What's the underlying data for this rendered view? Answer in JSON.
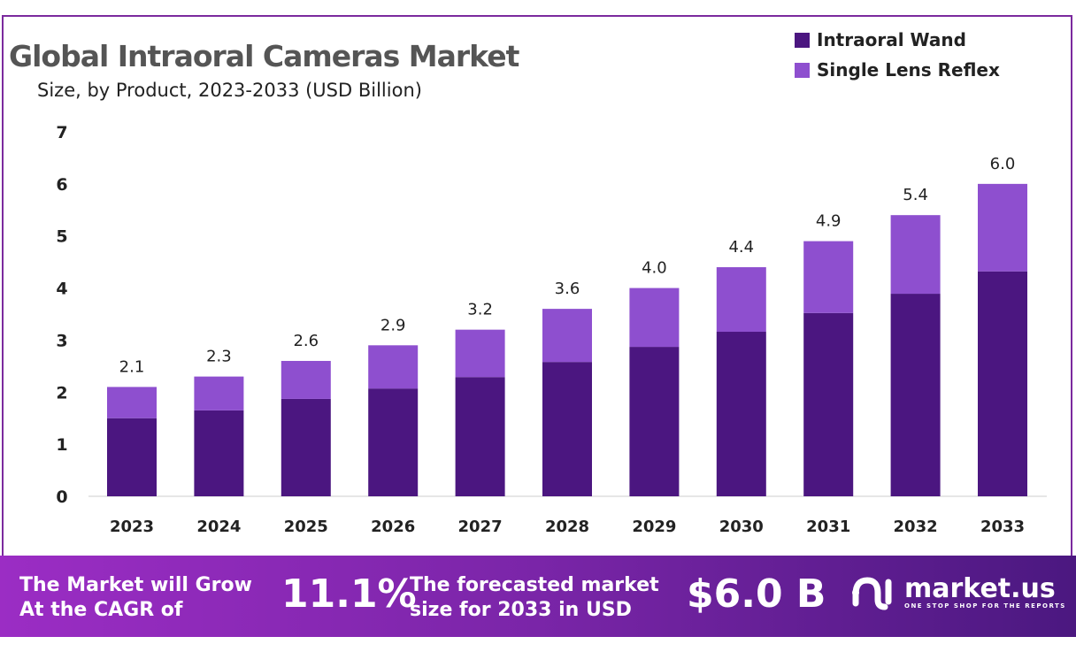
{
  "chart_data": {
    "type": "bar",
    "stacked": true,
    "title": "Global Intraoral Cameras Market",
    "subtitle": "Size, by Product, 2023-2033 (USD Billion)",
    "categories": [
      "2023",
      "2024",
      "2025",
      "2026",
      "2027",
      "2028",
      "2029",
      "2030",
      "2031",
      "2032",
      "2033"
    ],
    "series": [
      {
        "name": "Intraoral Wand",
        "color": "#4B1680",
        "values": [
          1.5,
          1.65,
          1.87,
          2.07,
          2.29,
          2.58,
          2.87,
          3.16,
          3.52,
          3.89,
          4.32
        ]
      },
      {
        "name": "Single Lens Reflex",
        "color": "#8E4FCF",
        "values": [
          0.6,
          0.65,
          0.73,
          0.83,
          0.91,
          1.02,
          1.13,
          1.24,
          1.38,
          1.51,
          1.68
        ]
      }
    ],
    "totals": [
      "2.1",
      "2.3",
      "2.6",
      "2.9",
      "3.2",
      "3.6",
      "4.0",
      "4.4",
      "4.9",
      "5.4",
      "6.0"
    ],
    "ylim": [
      0,
      7
    ],
    "yticks": [
      "0",
      "1",
      "2",
      "3",
      "4",
      "5",
      "6",
      "7"
    ],
    "legend_position": "top-right",
    "grid": false
  },
  "footer": {
    "cagr_text_1": "The Market will Grow",
    "cagr_text_2": "At the CAGR of",
    "cagr_value": "11.1%",
    "forecast_text_1": "The forecasted market",
    "forecast_text_2": "size for 2033 in USD",
    "forecast_value": "$6.0 B",
    "brand": "market.us",
    "tagline": "ONE STOP SHOP FOR THE REPORTS"
  }
}
